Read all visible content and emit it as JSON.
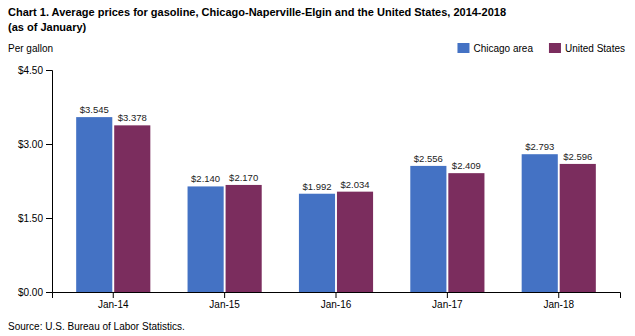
{
  "chart_data": {
    "type": "bar",
    "title": "Chart 1. Average prices for gasoline, Chicago-Naperville-Elgin and the United States, 2014-2018",
    "subtitle": "(as of January)",
    "ylabel": "Per gallon",
    "source": "Source: U.S. Bureau of Labor Statistics.",
    "categories": [
      "Jan-14",
      "Jan-15",
      "Jan-16",
      "Jan-17",
      "Jan-18"
    ],
    "series": [
      {
        "name": "Chicago area",
        "color": "#4472C4",
        "values": [
          3.545,
          2.14,
          1.992,
          2.556,
          2.793
        ],
        "value_labels": [
          "$3.545",
          "$2.140",
          "$1.992",
          "$2.556",
          "$2.793"
        ]
      },
      {
        "name": "United States",
        "color": "#7B2D5E",
        "values": [
          3.378,
          2.17,
          2.034,
          2.409,
          2.596
        ],
        "value_labels": [
          "$3.378",
          "$2.170",
          "$2.034",
          "$2.409",
          "$2.596"
        ]
      }
    ],
    "ylim": [
      0,
      4.5
    ],
    "yticks": [
      {
        "value": 0.0,
        "label": "$0.00"
      },
      {
        "value": 1.5,
        "label": "$1.50"
      },
      {
        "value": 3.0,
        "label": "$3.00"
      },
      {
        "value": 4.5,
        "label": "$4.50"
      }
    ],
    "grid": false,
    "legend": "upper right",
    "data_labels": true
  }
}
